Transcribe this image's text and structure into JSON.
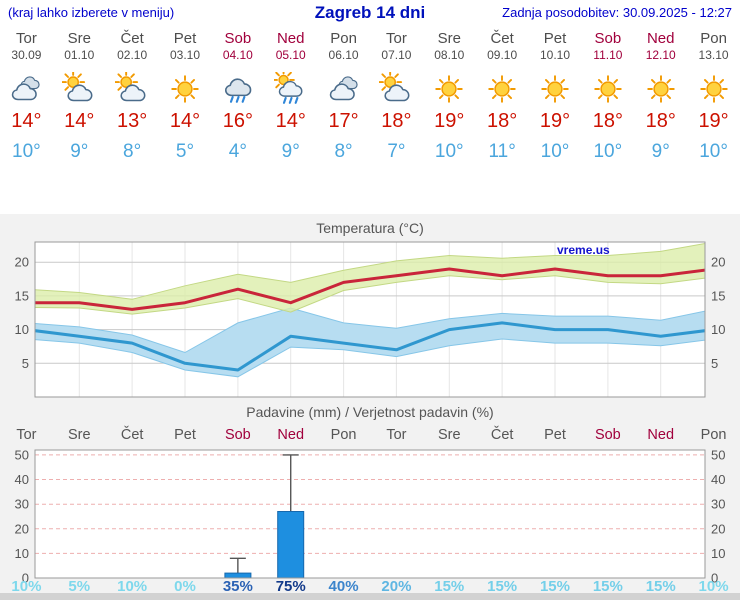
{
  "header": {
    "note": "(kraj lahko izberete v meniju)",
    "title": "Zagreb 14 dni",
    "updated": "Zadnja posodobitev: 30.09.2025 - 12:27",
    "accent_color": "#0000cc",
    "weekend_color": "#a1003c"
  },
  "forecast": {
    "high_color": "#cc1100",
    "low_color": "#4ba6dd",
    "days": [
      {
        "name": "Tor",
        "date": "30.09",
        "icon": "cloudy",
        "high": "14°",
        "low": "10°",
        "weekend": false
      },
      {
        "name": "Sre",
        "date": "01.10",
        "icon": "partly-sun",
        "high": "14°",
        "low": "9°",
        "weekend": false
      },
      {
        "name": "Čet",
        "date": "02.10",
        "icon": "partly-sun",
        "high": "13°",
        "low": "8°",
        "weekend": false
      },
      {
        "name": "Pet",
        "date": "03.10",
        "icon": "sun",
        "high": "14°",
        "low": "5°",
        "weekend": false
      },
      {
        "name": "Sob",
        "date": "04.10",
        "icon": "rain",
        "high": "16°",
        "low": "4°",
        "weekend": true
      },
      {
        "name": "Ned",
        "date": "05.10",
        "icon": "rain-sun",
        "high": "14°",
        "low": "9°",
        "weekend": true
      },
      {
        "name": "Pon",
        "date": "06.10",
        "icon": "cloudy",
        "high": "17°",
        "low": "8°",
        "weekend": false
      },
      {
        "name": "Tor",
        "date": "07.10",
        "icon": "partly-sun",
        "high": "18°",
        "low": "7°",
        "weekend": false
      },
      {
        "name": "Sre",
        "date": "08.10",
        "icon": "sun",
        "high": "19°",
        "low": "10°",
        "weekend": false
      },
      {
        "name": "Čet",
        "date": "09.10",
        "icon": "sun",
        "high": "18°",
        "low": "11°",
        "weekend": false
      },
      {
        "name": "Pet",
        "date": "10.10",
        "icon": "sun",
        "high": "19°",
        "low": "10°",
        "weekend": false
      },
      {
        "name": "Sob",
        "date": "11.10",
        "icon": "sun",
        "high": "18°",
        "low": "10°",
        "weekend": true
      },
      {
        "name": "Ned",
        "date": "12.10",
        "icon": "sun",
        "high": "18°",
        "low": "9°",
        "weekend": true
      },
      {
        "name": "Pon",
        "date": "13.10",
        "icon": "sun",
        "high": "19°",
        "low": "10°",
        "weekend": false
      }
    ]
  },
  "chart_data": [
    {
      "type": "line",
      "title": "Temperatura (°C)",
      "watermark": "vreme.us",
      "ylim": [
        0,
        23
      ],
      "yticks": [
        5,
        10,
        15,
        20
      ],
      "grid": true,
      "x_labels": [
        "Tor",
        "Sre",
        "Čet",
        "Pet",
        "Sob",
        "Ned",
        "Pon",
        "Tor",
        "Sre",
        "Čet",
        "Pet",
        "Sob",
        "Ned",
        "Pon"
      ],
      "series": [
        {
          "name": "max",
          "color": "#c9253a",
          "values": [
            14,
            14,
            13,
            14,
            16,
            14,
            17,
            18,
            19,
            18,
            19,
            18,
            18,
            19
          ]
        },
        {
          "name": "min",
          "color": "#2f97cf",
          "values": [
            10,
            9,
            8,
            5,
            4,
            9,
            8,
            7,
            10,
            11,
            10,
            10,
            9,
            10
          ]
        },
        {
          "name": "max_range",
          "fill": "#dcedaa",
          "edge": "#c3d884",
          "upper": [
            16,
            15.5,
            14.5,
            16.5,
            18.2,
            17,
            18.8,
            20.2,
            21,
            20.6,
            21,
            21,
            21.6,
            23
          ],
          "lower": [
            13.3,
            13.2,
            12.3,
            13.2,
            14.6,
            12.6,
            15.8,
            17,
            18,
            17.4,
            18,
            17,
            16.8,
            17.8
          ]
        },
        {
          "name": "min_range",
          "fill": "#b7ddf1",
          "edge": "#86c6e8",
          "upper": [
            11,
            10.4,
            9.2,
            6.6,
            11,
            13.2,
            11,
            10.2,
            11.6,
            12.4,
            12,
            12,
            11.4,
            13
          ],
          "lower": [
            8.6,
            8,
            6.6,
            4,
            3,
            7.4,
            7,
            6,
            7.6,
            8.6,
            8,
            8,
            7.6,
            8.6
          ]
        }
      ]
    },
    {
      "type": "bar",
      "title": "Padavine (mm) / Verjetnost padavin (%)",
      "ylim": [
        0,
        52
      ],
      "yticks": [
        0,
        10,
        20,
        30,
        40,
        50
      ],
      "bar_color": "#1e8fe0",
      "bar_edge": "#1668ad",
      "categories": [
        "Tor",
        "Sre",
        "Čet",
        "Pet",
        "Sob",
        "Ned",
        "Pon",
        "Tor",
        "Sre",
        "Čet",
        "Pet",
        "Sob",
        "Ned",
        "Pon"
      ],
      "weekend": [
        false,
        false,
        false,
        false,
        true,
        true,
        false,
        false,
        false,
        false,
        false,
        true,
        true,
        false
      ],
      "values": [
        0,
        0,
        0,
        0,
        2,
        27,
        0,
        0,
        0,
        0,
        0,
        0,
        0,
        0
      ],
      "whisker_max": [
        0,
        0,
        0,
        0,
        8,
        50,
        0,
        0,
        0,
        0,
        0,
        0,
        0,
        0
      ],
      "probabilities": [
        {
          "text": "10%",
          "color": "#7ed8ec"
        },
        {
          "text": "5%",
          "color": "#7ed8ec"
        },
        {
          "text": "10%",
          "color": "#7ed8ec"
        },
        {
          "text": "0%",
          "color": "#7ed8ec"
        },
        {
          "text": "35%",
          "color": "#2b62b4"
        },
        {
          "text": "75%",
          "color": "#123a8a"
        },
        {
          "text": "40%",
          "color": "#3c85cc"
        },
        {
          "text": "20%",
          "color": "#5fb6e2"
        },
        {
          "text": "15%",
          "color": "#74cfe9"
        },
        {
          "text": "15%",
          "color": "#74cfe9"
        },
        {
          "text": "15%",
          "color": "#74cfe9"
        },
        {
          "text": "15%",
          "color": "#74cfe9"
        },
        {
          "text": "15%",
          "color": "#74cfe9"
        },
        {
          "text": "10%",
          "color": "#7ed8ec"
        }
      ]
    }
  ]
}
